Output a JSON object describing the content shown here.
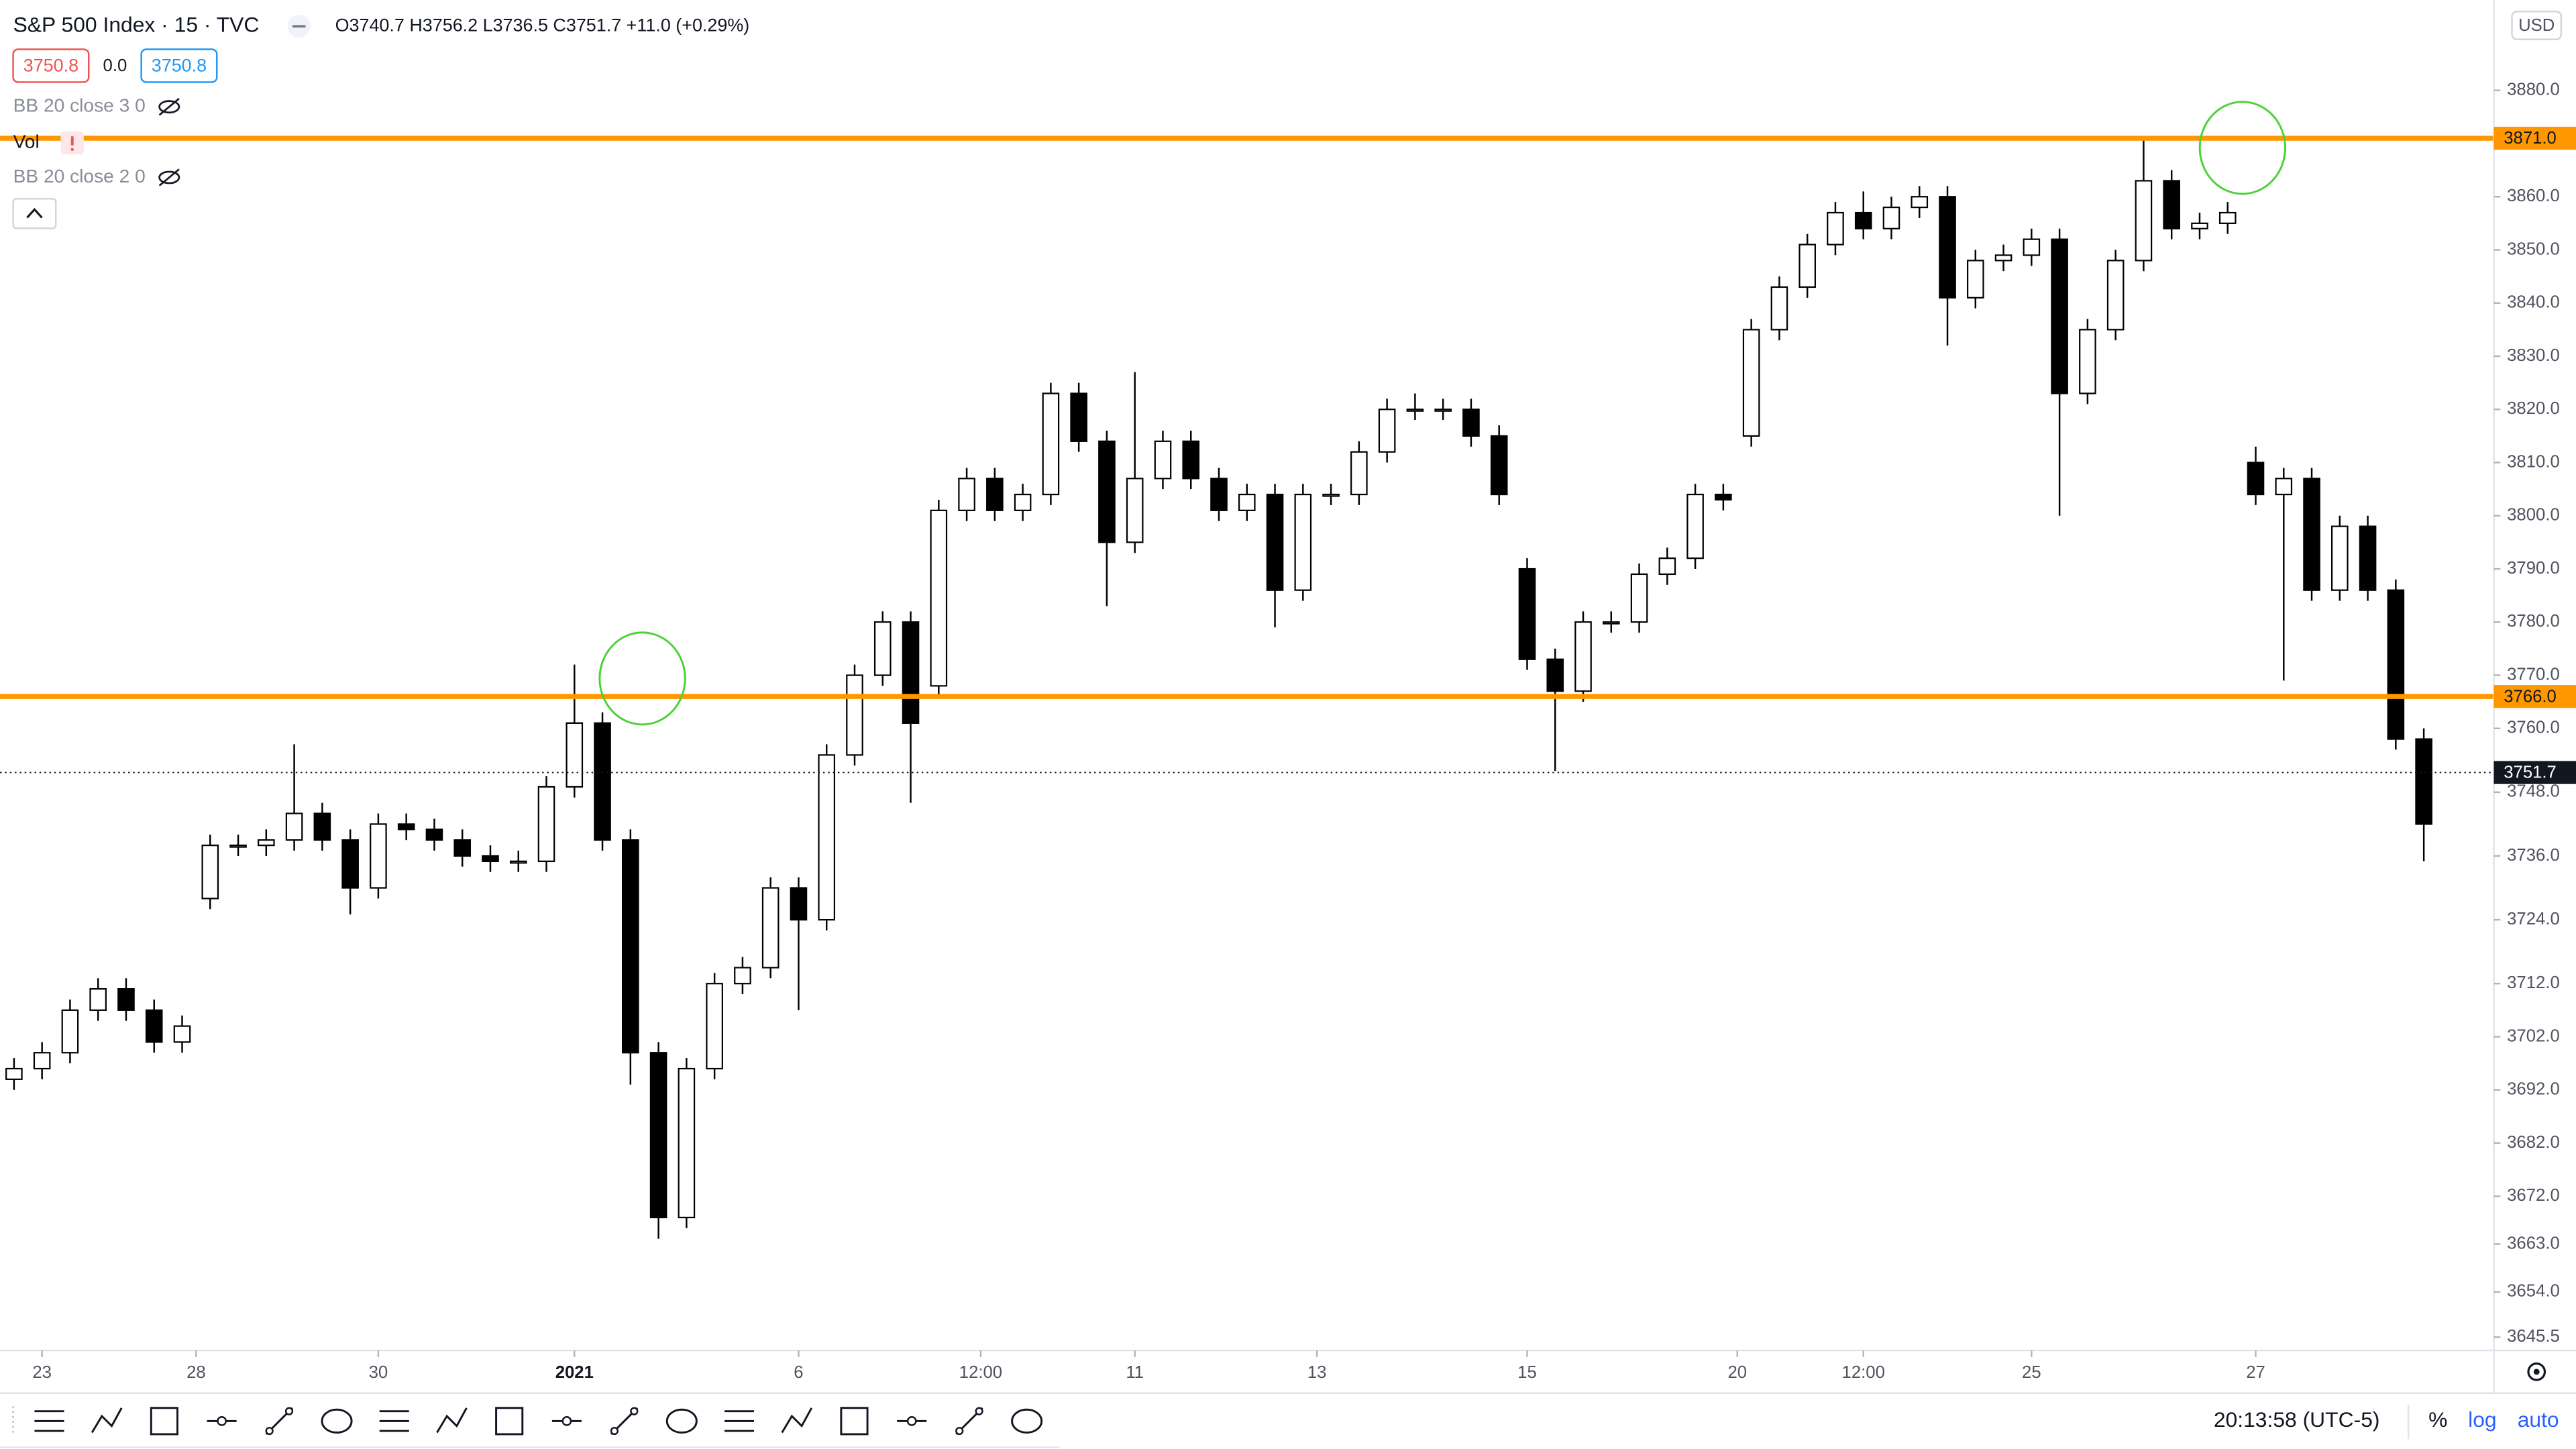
{
  "header": {
    "symbol": "S&P 500 Index · 15 · TVC",
    "ohlc": "O3740.7 H3756.2 L3736.5 C3751.7 +11.0 (+0.29%)",
    "bid": "3750.8",
    "spread": "0.0",
    "ask": "3750.8",
    "indicators": [
      "BB 20 close 3 0",
      "Vol",
      "BB 20 close 2 0"
    ]
  },
  "scale": {
    "currency": "USD"
  },
  "footer": {
    "time": "20:13:58 (UTC-5)",
    "percent": "%",
    "log": "log",
    "auto": "auto"
  },
  "chart_data": {
    "type": "candlestick",
    "up_color": "#ffffff",
    "down_color": "#000000",
    "outline_color": "#000000",
    "grid": false,
    "xlim": [
      0,
      89
    ],
    "ylim": [
      3643,
      3897
    ],
    "xticks": [
      {
        "value": 1.5,
        "label": "23"
      },
      {
        "value": 7,
        "label": "28"
      },
      {
        "value": 13.5,
        "label": "30"
      },
      {
        "value": 20.5,
        "label": "2021"
      },
      {
        "value": 28.5,
        "label": "6"
      },
      {
        "value": 35,
        "label": "12:00"
      },
      {
        "value": 40.5,
        "label": "11"
      },
      {
        "value": 47,
        "label": "13"
      },
      {
        "value": 54.5,
        "label": "15"
      },
      {
        "value": 62,
        "label": "20"
      },
      {
        "value": 66.5,
        "label": "12:00"
      },
      {
        "value": 72.5,
        "label": "25"
      },
      {
        "value": 80.5,
        "label": "27"
      }
    ],
    "yticks": [
      {
        "value": 3880,
        "label": "3880.0"
      },
      {
        "value": 3860,
        "label": "3860.0"
      },
      {
        "value": 3850,
        "label": "3850.0"
      },
      {
        "value": 3840,
        "label": "3840.0"
      },
      {
        "value": 3830,
        "label": "3830.0"
      },
      {
        "value": 3820,
        "label": "3820.0"
      },
      {
        "value": 3810,
        "label": "3810.0"
      },
      {
        "value": 3800,
        "label": "3800.0"
      },
      {
        "value": 3790,
        "label": "3790.0"
      },
      {
        "value": 3780,
        "label": "3780.0"
      },
      {
        "value": 3770,
        "label": "3770.0"
      },
      {
        "value": 3760,
        "label": "3760.0"
      },
      {
        "value": 3748,
        "label": "3748.0"
      },
      {
        "value": 3736,
        "label": "3736.0"
      },
      {
        "value": 3724,
        "label": "3724.0"
      },
      {
        "value": 3712,
        "label": "3712.0"
      },
      {
        "value": 3702,
        "label": "3702.0"
      },
      {
        "value": 3692,
        "label": "3692.0"
      },
      {
        "value": 3682,
        "label": "3682.0"
      },
      {
        "value": 3672,
        "label": "3672.0"
      },
      {
        "value": 3663,
        "label": "3663.0"
      },
      {
        "value": 3654,
        "label": "3654.0"
      },
      3645.5
    ],
    "open": [
      3694,
      3696,
      3699,
      3707,
      3711,
      3707,
      3701,
      3728,
      3738,
      3738,
      3739,
      3744,
      3739,
      3730,
      3742,
      3741,
      3739,
      3736,
      3735,
      3735,
      3749,
      3761,
      3739,
      3699,
      3668,
      3696,
      3712,
      3715,
      3730,
      3724,
      3755,
      3770,
      3780,
      3768,
      3801,
      3807,
      3801,
      3804,
      3823,
      3814,
      3795,
      3807,
      3814,
      3807,
      3801,
      3804,
      3786,
      3804,
      3804,
      3812,
      3820,
      3820,
      3820,
      3815,
      3790,
      3773,
      3767,
      3780,
      3780,
      3789,
      3792,
      3804,
      3815,
      3835,
      3843,
      3851,
      3857,
      3854,
      3858,
      3860,
      3841,
      3848,
      3849,
      3852,
      3823,
      3835,
      3848,
      3863,
      3854,
      3855,
      3810,
      3804,
      3807,
      3786,
      3798,
      3786,
      3758
    ],
    "high": [
      3698,
      3701,
      3709,
      3713,
      3713,
      3709,
      3706,
      3740,
      3740,
      3741,
      3757,
      3746,
      3741,
      3744,
      3744,
      3743,
      3741,
      3738,
      3737,
      3751,
      3772,
      3763,
      3741,
      3701,
      3698,
      3714,
      3717,
      3732,
      3732,
      3757,
      3772,
      3782,
      3782,
      3803,
      3809,
      3809,
      3806,
      3825,
      3825,
      3816,
      3827,
      3816,
      3816,
      3809,
      3806,
      3806,
      3806,
      3806,
      3814,
      3822,
      3823,
      3822,
      3822,
      3817,
      3792,
      3775,
      3782,
      3782,
      3791,
      3794,
      3806,
      3806,
      3837,
      3845,
      3853,
      3859,
      3861,
      3860,
      3862,
      3862,
      3850,
      3851,
      3854,
      3854,
      3837,
      3850,
      3871,
      3865,
      3857,
      3859,
      3813,
      3809,
      3809,
      3800,
      3800,
      3788,
      3760
    ],
    "low": [
      3692,
      3694,
      3697,
      3705,
      3705,
      3699,
      3699,
      3726,
      3736,
      3736,
      3737,
      3737,
      3725,
      3728,
      3739,
      3737,
      3734,
      3733,
      3733,
      3733,
      3747,
      3737,
      3693,
      3664,
      3666,
      3694,
      3710,
      3713,
      3707,
      3722,
      3753,
      3768,
      3746,
      3766,
      3799,
      3799,
      3799,
      3802,
      3812,
      3783,
      3793,
      3805,
      3805,
      3799,
      3799,
      3779,
      3784,
      3802,
      3802,
      3810,
      3818,
      3818,
      3813,
      3802,
      3771,
      3752,
      3765,
      3778,
      3778,
      3787,
      3790,
      3801,
      3813,
      3833,
      3841,
      3849,
      3852,
      3852,
      3856,
      3832,
      3839,
      3846,
      3847,
      3800,
      3821,
      3833,
      3846,
      3852,
      3852,
      3853,
      3802,
      3769,
      3784,
      3784,
      3784,
      3756,
      3735
    ],
    "close": [
      3696,
      3699,
      3707,
      3711,
      3707,
      3701,
      3704,
      3738,
      3738,
      3739,
      3744,
      3739,
      3730,
      3742,
      3741,
      3739,
      3736,
      3735,
      3735,
      3749,
      3761,
      3739,
      3699,
      3668,
      3696,
      3712,
      3715,
      3730,
      3724,
      3755,
      3770,
      3780,
      3761,
      3801,
      3807,
      3801,
      3804,
      3823,
      3814,
      3795,
      3807,
      3814,
      3807,
      3801,
      3804,
      3786,
      3804,
      3804,
      3812,
      3820,
      3820,
      3820,
      3815,
      3804,
      3773,
      3767,
      3780,
      3780,
      3789,
      3792,
      3804,
      3803,
      3835,
      3843,
      3851,
      3857,
      3854,
      3858,
      3860,
      3841,
      3848,
      3849,
      3852,
      3823,
      3835,
      3848,
      3863,
      3854,
      3855,
      3857,
      3804,
      3807,
      3786,
      3798,
      3786,
      3758,
      3742
    ],
    "hlines": [
      {
        "value": 3871.0,
        "label": "3871.0",
        "color": "#ff9800"
      },
      {
        "value": 3766.0,
        "label": "3766.0",
        "color": "#ff9800"
      }
    ],
    "last_price": {
      "value": 3751.7,
      "color": "#131722"
    }
  }
}
